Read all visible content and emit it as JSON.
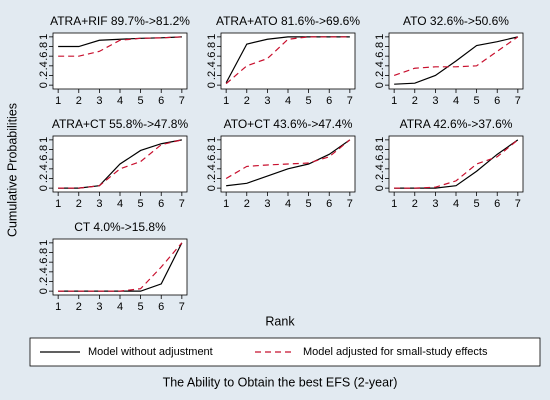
{
  "ylabel": "Cumulative Probabilities",
  "xlabel": "Rank",
  "title": "The Ability to Obtain the best EFS (2-year)",
  "legend": [
    {
      "name": "Model without adjustment",
      "color": "#000000",
      "dash": "solid"
    },
    {
      "name": "Model adjusted for small-study effects",
      "color": "#c8102e",
      "dash": "dashed"
    }
  ],
  "chart_data": [
    {
      "type": "line",
      "title": "ATRA+RIF 89.7%->81.2%",
      "x": [
        1,
        2,
        3,
        4,
        5,
        6,
        7
      ],
      "xlim": [
        0.75,
        7.25
      ],
      "ylim": [
        -0.08,
        1.08
      ],
      "xticks": [
        1,
        2,
        3,
        4,
        5,
        6,
        7
      ],
      "yticks": [
        0,
        {
          "value": 0.2,
          "label": ".2"
        },
        {
          "value": 0.4,
          "label": ".4"
        },
        {
          "value": 0.6,
          "label": ".6"
        },
        {
          "value": 0.8,
          "label": ".8"
        },
        1
      ],
      "series": [
        {
          "color": "#000000",
          "dash": "solid",
          "values": [
            0.8,
            0.8,
            0.93,
            0.95,
            0.97,
            0.98,
            1
          ]
        },
        {
          "color": "#c8102e",
          "dash": "dashed",
          "values": [
            0.6,
            0.6,
            0.7,
            0.93,
            0.97,
            0.98,
            1
          ]
        }
      ]
    },
    {
      "type": "line",
      "title": "ATRA+ATO 81.6%->69.6%",
      "x": [
        1,
        2,
        3,
        4,
        5,
        6,
        7
      ],
      "xlim": [
        0.75,
        7.25
      ],
      "ylim": [
        -0.08,
        1.08
      ],
      "xticks": [
        1,
        2,
        3,
        4,
        5,
        6,
        7
      ],
      "yticks": [
        0,
        {
          "value": 0.2,
          "label": ".2"
        },
        {
          "value": 0.4,
          "label": ".4"
        },
        {
          "value": 0.6,
          "label": ".6"
        },
        {
          "value": 0.8,
          "label": ".8"
        },
        1
      ],
      "series": [
        {
          "color": "#000000",
          "dash": "solid",
          "values": [
            0.05,
            0.85,
            0.95,
            1,
            1,
            1,
            1
          ]
        },
        {
          "color": "#c8102e",
          "dash": "dashed",
          "values": [
            0.03,
            0.4,
            0.55,
            0.95,
            1,
            1,
            1
          ]
        }
      ]
    },
    {
      "type": "line",
      "title": "ATO 32.6%->50.6%",
      "x": [
        1,
        2,
        3,
        4,
        5,
        6,
        7
      ],
      "xlim": [
        0.75,
        7.25
      ],
      "ylim": [
        -0.08,
        1.08
      ],
      "xticks": [
        1,
        2,
        3,
        4,
        5,
        6,
        7
      ],
      "yticks": [
        0,
        {
          "value": 0.2,
          "label": ".2"
        },
        {
          "value": 0.4,
          "label": ".4"
        },
        {
          "value": 0.6,
          "label": ".6"
        },
        {
          "value": 0.8,
          "label": ".8"
        },
        1
      ],
      "series": [
        {
          "color": "#000000",
          "dash": "solid",
          "values": [
            0.02,
            0.04,
            0.2,
            0.5,
            0.82,
            0.9,
            1
          ]
        },
        {
          "color": "#c8102e",
          "dash": "dashed",
          "values": [
            0.2,
            0.35,
            0.38,
            0.38,
            0.4,
            0.7,
            1
          ]
        }
      ]
    },
    {
      "type": "line",
      "title": "ATRA+CT 55.8%->47.8%",
      "x": [
        1,
        2,
        3,
        4,
        5,
        6,
        7
      ],
      "xlim": [
        0.75,
        7.25
      ],
      "ylim": [
        -0.08,
        1.08
      ],
      "xticks": [
        1,
        2,
        3,
        4,
        5,
        6,
        7
      ],
      "yticks": [
        0,
        {
          "value": 0.2,
          "label": ".2"
        },
        {
          "value": 0.4,
          "label": ".4"
        },
        {
          "value": 0.6,
          "label": ".6"
        },
        {
          "value": 0.8,
          "label": ".8"
        },
        1
      ],
      "series": [
        {
          "color": "#000000",
          "dash": "solid",
          "values": [
            0,
            0,
            0.05,
            0.5,
            0.78,
            0.92,
            1
          ]
        },
        {
          "color": "#c8102e",
          "dash": "dashed",
          "values": [
            0,
            0,
            0.05,
            0.4,
            0.55,
            0.9,
            1
          ]
        }
      ]
    },
    {
      "type": "line",
      "title": "ATO+CT 43.6%->47.4%",
      "x": [
        1,
        2,
        3,
        4,
        5,
        6,
        7
      ],
      "xlim": [
        0.75,
        7.25
      ],
      "ylim": [
        -0.08,
        1.08
      ],
      "xticks": [
        1,
        2,
        3,
        4,
        5,
        6,
        7
      ],
      "yticks": [
        0,
        {
          "value": 0.2,
          "label": ".2"
        },
        {
          "value": 0.4,
          "label": ".4"
        },
        {
          "value": 0.6,
          "label": ".6"
        },
        {
          "value": 0.8,
          "label": ".8"
        },
        1
      ],
      "series": [
        {
          "color": "#000000",
          "dash": "solid",
          "values": [
            0.05,
            0.1,
            0.25,
            0.4,
            0.5,
            0.7,
            1
          ]
        },
        {
          "color": "#c8102e",
          "dash": "dashed",
          "values": [
            0.2,
            0.45,
            0.48,
            0.5,
            0.52,
            0.65,
            1
          ]
        }
      ]
    },
    {
      "type": "line",
      "title": "ATRA 42.6%->37.6%",
      "x": [
        1,
        2,
        3,
        4,
        5,
        6,
        7
      ],
      "xlim": [
        0.75,
        7.25
      ],
      "ylim": [
        -0.08,
        1.08
      ],
      "xticks": [
        1,
        2,
        3,
        4,
        5,
        6,
        7
      ],
      "yticks": [
        0,
        {
          "value": 0.2,
          "label": ".2"
        },
        {
          "value": 0.4,
          "label": ".4"
        },
        {
          "value": 0.6,
          "label": ".6"
        },
        {
          "value": 0.8,
          "label": ".8"
        },
        1
      ],
      "series": [
        {
          "color": "#000000",
          "dash": "solid",
          "values": [
            0,
            0,
            0,
            0.05,
            0.35,
            0.7,
            1
          ]
        },
        {
          "color": "#c8102e",
          "dash": "dashed",
          "values": [
            0,
            0,
            0.02,
            0.15,
            0.5,
            0.65,
            1
          ]
        }
      ]
    },
    {
      "type": "line",
      "title": "CT 4.0%->15.8%",
      "x": [
        1,
        2,
        3,
        4,
        5,
        6,
        7
      ],
      "xlim": [
        0.75,
        7.25
      ],
      "ylim": [
        -0.08,
        1.08
      ],
      "xticks": [
        1,
        2,
        3,
        4,
        5,
        6,
        7
      ],
      "yticks": [
        0,
        {
          "value": 0.2,
          "label": ".2"
        },
        {
          "value": 0.4,
          "label": ".4"
        },
        {
          "value": 0.6,
          "label": ".6"
        },
        {
          "value": 0.8,
          "label": ".8"
        },
        1
      ],
      "series": [
        {
          "color": "#000000",
          "dash": "solid",
          "values": [
            0,
            0,
            0,
            0,
            0,
            0.15,
            1
          ]
        },
        {
          "color": "#c8102e",
          "dash": "dashed",
          "values": [
            0,
            0,
            0,
            0,
            0.05,
            0.5,
            1
          ]
        }
      ]
    }
  ]
}
